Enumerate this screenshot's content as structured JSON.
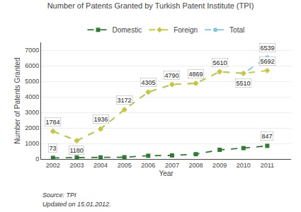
{
  "chart_data": {
    "type": "line",
    "title": "Number of Patents Granted by Turkish Patent Institute (TPI)",
    "xlabel": "Year",
    "ylabel": "Number of Patents Granted",
    "x": [
      2002,
      2003,
      2004,
      2005,
      2006,
      2007,
      2008,
      2009,
      2010,
      2011
    ],
    "series": [
      {
        "name": "Total",
        "color": "#7ec8e3",
        "marker": "circle",
        "line_style": "dashed",
        "values": [
          1784,
          1180,
          1936,
          3172,
          4305,
          4790,
          4869,
          5610,
          5510,
          6539
        ],
        "value_labels": [
          null,
          null,
          null,
          null,
          null,
          null,
          null,
          null,
          null,
          "6539"
        ]
      },
      {
        "name": "Foreign",
        "color": "#c8c832",
        "marker": "diamond",
        "line_style": "dashed",
        "values": [
          1784,
          1180,
          1936,
          3172,
          4305,
          4790,
          4869,
          5610,
          5510,
          5692
        ],
        "value_labels": [
          "1784",
          "1180",
          "1936",
          "3172",
          "4305",
          "4790",
          "4869",
          "5610",
          "5510",
          "5692"
        ]
      },
      {
        "name": "Domestic",
        "color": "#2e7d32",
        "marker": "square",
        "line_style": "dashed",
        "values": [
          73,
          100,
          105,
          115,
          210,
          230,
          310,
          590,
          700,
          847
        ],
        "value_labels": [
          "73",
          null,
          null,
          null,
          null,
          null,
          null,
          null,
          null,
          "847"
        ]
      }
    ],
    "xlim": [
      2001.5,
      2012.0
    ],
    "xticks": [
      2002,
      2003,
      2004,
      2005,
      2006,
      2007,
      2008,
      2009,
      2010,
      2011
    ],
    "ylim": [
      0,
      7500
    ],
    "yticks": [
      0,
      1000,
      2000,
      3000,
      4000,
      5000,
      6000,
      7000
    ],
    "grid": "y",
    "legend": "upper center",
    "annotations": [
      "Source: TPI",
      "Updated on 15.01.2012."
    ]
  }
}
